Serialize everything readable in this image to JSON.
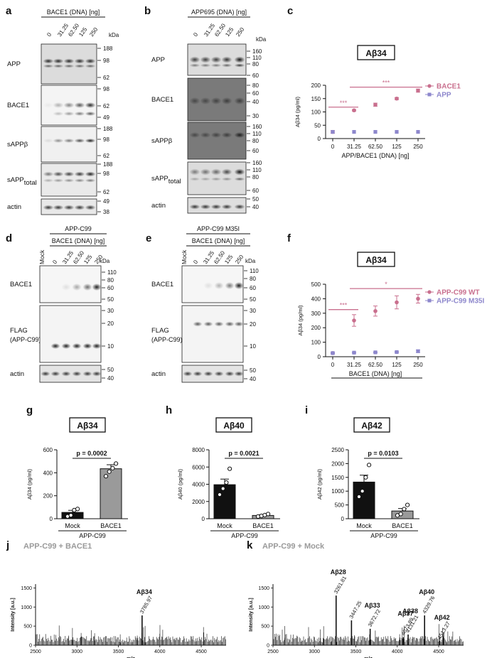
{
  "panels": {
    "a": {
      "letter": "a",
      "header": "BACE1 (DNA) [ng]",
      "doses": [
        "0",
        "31.25",
        "62.50",
        "125",
        "250"
      ],
      "kda": "kDa",
      "blots": [
        {
          "label": "APP",
          "ticks": [
            "188",
            "98",
            "62"
          ]
        },
        {
          "label": "BACE1",
          "ticks": [
            "98",
            "62",
            "49"
          ]
        },
        {
          "label": "sAPPβ",
          "ticks": [
            "188",
            "98",
            "62"
          ]
        },
        {
          "label": "sAPP",
          "sub": "total",
          "ticks": [
            "188",
            "98",
            "62"
          ]
        },
        {
          "label": "actin",
          "ticks": [
            "49",
            "38"
          ]
        }
      ]
    },
    "b": {
      "letter": "b",
      "header": "APP695 (DNA) [ng]",
      "doses": [
        "0",
        "31.25",
        "62.50",
        "125",
        "250"
      ],
      "kda": "kDa",
      "blots": [
        {
          "label": "APP",
          "ticks": [
            "160",
            "110",
            "80",
            "60"
          ]
        },
        {
          "label": "BACE1",
          "ticks": [
            "80",
            "60",
            "40",
            "30"
          ]
        },
        {
          "label": "sAPPβ",
          "ticks": [
            "160",
            "110",
            "80",
            "60"
          ]
        },
        {
          "label": "sAPP",
          "sub": "total",
          "ticks": [
            "160",
            "110",
            "80",
            "60"
          ]
        },
        {
          "label": "actin",
          "ticks": [
            "50",
            "40"
          ]
        }
      ]
    },
    "d": {
      "letter": "d",
      "header_top": "APP-C99",
      "header": "BACE1 (DNA) [ng]",
      "mock": "Mock",
      "doses": [
        "0",
        "31.25",
        "62.50",
        "125",
        "250"
      ],
      "kda": "kDa",
      "blots": [
        {
          "label": "BACE1",
          "ticks": [
            "110",
            "80",
            "60",
            "50"
          ]
        },
        {
          "label": "FLAG",
          "label2": "(APP-C99)",
          "ticks": [
            "30",
            "20",
            "10"
          ]
        },
        {
          "label": "actin",
          "ticks": [
            "50",
            "40"
          ]
        }
      ]
    },
    "e": {
      "letter": "e",
      "header_top": "APP-C99 M35I",
      "header": "BACE1 (DNA) [ng]",
      "mock": "Mock",
      "doses": [
        "0",
        "31.25",
        "62.50",
        "125",
        "250"
      ],
      "kda": "kDa",
      "blots": [
        {
          "label": "BACE1",
          "ticks": [
            "110",
            "80",
            "60",
            "50"
          ]
        },
        {
          "label": "FLAG",
          "label2": "(APP-C99)",
          "ticks": [
            "30",
            "20",
            "10"
          ]
        },
        {
          "label": "actin",
          "ticks": [
            "50",
            "40"
          ]
        }
      ]
    },
    "j": {
      "letter": "j",
      "title": "APP-C99 + BACE1"
    },
    "k": {
      "letter": "k",
      "title": "APP-C99 + Mock"
    }
  },
  "chart_data": [
    {
      "id": "c",
      "letter": "c",
      "type": "scatter",
      "title": "Aβ34",
      "xlabel": "APP/BACE1 (DNA) [ng]",
      "ylabel": "Aβ34 (pg/ml)",
      "categories": [
        "0",
        "31.25",
        "62.50",
        "125",
        "250"
      ],
      "ylim": [
        0,
        200
      ],
      "yticks": [
        0,
        50,
        100,
        150,
        200
      ],
      "legend_position": "top-right",
      "series": [
        {
          "name": "BACE1",
          "color": "#c96f8e",
          "values": [
            25,
            106,
            127,
            150,
            180
          ],
          "errors": [
            5,
            3,
            6,
            4,
            6
          ]
        },
        {
          "name": "APP",
          "color": "#8d87cc",
          "values": [
            25,
            25,
            25,
            25,
            25
          ],
          "errors": [
            0,
            0,
            0,
            0,
            0
          ]
        }
      ],
      "significance": [
        {
          "label": "***",
          "from": 0,
          "to": 1,
          "y": 118
        },
        {
          "label": "***",
          "from": 1,
          "to": 4,
          "y": 193
        }
      ]
    },
    {
      "id": "f",
      "letter": "f",
      "type": "scatter",
      "title": "Aβ34",
      "xlabel": "BACE1 (DNA) [ng]",
      "ylabel": "Aβ34 (pg/ml)",
      "categories": [
        "0",
        "31.25",
        "62.50",
        "125",
        "250"
      ],
      "ylim": [
        0,
        500
      ],
      "yticks": [
        0,
        100,
        200,
        300,
        400,
        500
      ],
      "legend_position": "top-right",
      "series": [
        {
          "name": "APP-C99 WT",
          "color": "#c96f8e",
          "values": [
            25,
            250,
            315,
            375,
            400
          ],
          "errors": [
            5,
            40,
            35,
            45,
            30
          ]
        },
        {
          "name": "APP-C99 M35I",
          "color": "#8d87cc",
          "values": [
            25,
            28,
            30,
            32,
            38
          ],
          "errors": [
            3,
            3,
            3,
            3,
            8
          ]
        }
      ],
      "significance": [
        {
          "label": "***",
          "from": 0,
          "to": 1,
          "y": 325
        },
        {
          "label": "*",
          "from": 1,
          "to": 4,
          "y": 470
        }
      ]
    },
    {
      "id": "g",
      "letter": "g",
      "type": "bar",
      "title": "Aβ34",
      "ylabel": "Aβ34 (pg/ml)",
      "group_label": "APP-C99",
      "categories": [
        "Mock",
        "BACE1"
      ],
      "ylim": [
        0,
        600
      ],
      "yticks": [
        0,
        200,
        400,
        600
      ],
      "values": [
        55,
        435
      ],
      "errors": [
        18,
        35
      ],
      "colors": [
        "#111111",
        "#9a9a9a"
      ],
      "points": [
        [
          20,
          30,
          75,
          85
        ],
        [
          370,
          410,
          440,
          480
        ]
      ],
      "pvalue": "p = 0.0002"
    },
    {
      "id": "h",
      "letter": "h",
      "type": "bar",
      "title": "Aβ40",
      "ylabel": "Aβ40 (pg/ml)",
      "group_label": "APP-C99",
      "categories": [
        "Mock",
        "BACE1"
      ],
      "ylim": [
        0,
        8000
      ],
      "yticks": [
        0,
        2000,
        4000,
        6000,
        8000
      ],
      "values": [
        3950,
        380
      ],
      "errors": [
        650,
        80
      ],
      "colors": [
        "#111111",
        "#9a9a9a"
      ],
      "points": [
        [
          2800,
          3500,
          4200,
          5800
        ],
        [
          260,
          330,
          420,
          550
        ]
      ],
      "pvalue": "p = 0.0021"
    },
    {
      "id": "i",
      "letter": "i",
      "type": "bar",
      "title": "Aβ42",
      "ylabel": "Aβ42 (pg/ml)",
      "group_label": "APP-C99",
      "categories": [
        "Mock",
        "BACE1"
      ],
      "ylim": [
        0,
        2500
      ],
      "yticks": [
        0,
        500,
        1000,
        1500,
        2000,
        2500
      ],
      "values": [
        1330,
        280
      ],
      "errors": [
        250,
        90
      ],
      "colors": [
        "#111111",
        "#9a9a9a"
      ],
      "points": [
        [
          800,
          1000,
          1500,
          1950
        ],
        [
          120,
          170,
          350,
          500
        ]
      ],
      "pvalue": "p = 0.0103"
    },
    {
      "id": "j",
      "letter": "j",
      "type": "line",
      "title": "APP-C99 + BACE1",
      "xlabel": "m/z",
      "ylabel": "Intensity [a.u.]",
      "xlim": [
        2500,
        4800
      ],
      "xticks": [
        2500,
        3000,
        3500,
        4000,
        4500
      ],
      "ylim": [
        0,
        1600
      ],
      "yticks": [
        0,
        500,
        1000,
        1500
      ],
      "peaks": [
        {
          "mz": 3785.97,
          "intensity": 780,
          "name": "Aβ34"
        }
      ]
    },
    {
      "id": "k",
      "letter": "k",
      "type": "line",
      "title": "APP-C99 + Mock",
      "xlabel": "m/z",
      "ylabel": "Intensity [a.u.]",
      "xlim": [
        2500,
        4800
      ],
      "xticks": [
        2500,
        3000,
        3500,
        4000,
        4500
      ],
      "ylim": [
        0,
        1600
      ],
      "yticks": [
        0,
        500,
        1000,
        1500
      ],
      "peaks": [
        {
          "mz": 3261.81,
          "intensity": 1300,
          "name": "Aβ28"
        },
        {
          "mz": 3447.25,
          "intensity": 650,
          "name": ""
        },
        {
          "mz": 3672.72,
          "intensity": 430,
          "name": "Aβ33"
        },
        {
          "mz": 4073.89,
          "intensity": 210,
          "name": "Aβ37"
        },
        {
          "mz": 4131.21,
          "intensity": 280,
          "name": "Aβ38"
        },
        {
          "mz": 4329.76,
          "intensity": 780,
          "name": "Aβ40"
        },
        {
          "mz": 4513.27,
          "intensity": 110,
          "name": "Aβ42"
        }
      ]
    }
  ]
}
